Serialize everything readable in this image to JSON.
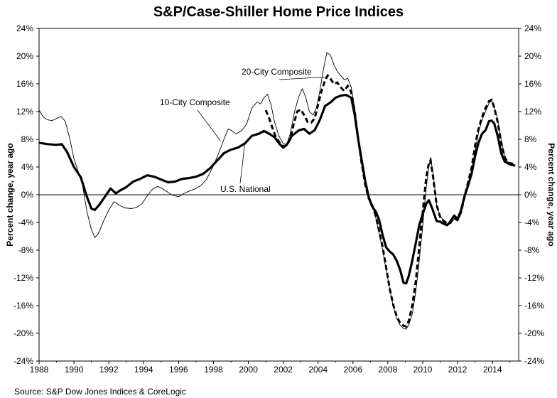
{
  "chart_data": {
    "type": "line",
    "title": "S&P/Case-Shiller Home Price Indices",
    "ylabel_left": "Percent change, year ago",
    "ylabel_right": "Percent change, year ago",
    "xlabel": "",
    "xlim": [
      1988,
      2015.5
    ],
    "ylim": [
      -24,
      24
    ],
    "x_ticks": [
      1988,
      1990,
      1992,
      1994,
      1996,
      1998,
      2000,
      2002,
      2004,
      2006,
      2008,
      2010,
      2012,
      2014
    ],
    "y_ticks": [
      -24,
      -20,
      -16,
      -12,
      -8,
      -4,
      0,
      4,
      8,
      12,
      16,
      20,
      24
    ],
    "y_tick_suffix": "%",
    "grid": false,
    "legend": "none (series labeled with callout annotations)",
    "series": [
      {
        "name": "10-City Composite",
        "style": "thin-solid",
        "points": [
          [
            1988.0,
            12.2
          ],
          [
            1988.25,
            11.2
          ],
          [
            1988.5,
            10.8
          ],
          [
            1988.75,
            10.7
          ],
          [
            1989.0,
            11.0
          ],
          [
            1989.25,
            11.3
          ],
          [
            1989.5,
            10.6
          ],
          [
            1989.75,
            8.2
          ],
          [
            1990.0,
            5.2
          ],
          [
            1990.25,
            3.3
          ],
          [
            1990.5,
            1.2
          ],
          [
            1990.75,
            -2.5
          ],
          [
            1991.0,
            -5.0
          ],
          [
            1991.2,
            -6.2
          ],
          [
            1991.4,
            -5.6
          ],
          [
            1991.7,
            -3.8
          ],
          [
            1992.0,
            -2.2
          ],
          [
            1992.3,
            -1.0
          ],
          [
            1992.6,
            -1.5
          ],
          [
            1992.9,
            -1.9
          ],
          [
            1993.3,
            -2.0
          ],
          [
            1993.6,
            -1.8
          ],
          [
            1993.9,
            -1.3
          ],
          [
            1994.2,
            -0.2
          ],
          [
            1994.5,
            0.8
          ],
          [
            1994.8,
            1.2
          ],
          [
            1995.0,
            1.0
          ],
          [
            1995.3,
            0.5
          ],
          [
            1995.6,
            0.0
          ],
          [
            1996.0,
            -0.3
          ],
          [
            1996.3,
            0.2
          ],
          [
            1996.6,
            0.5
          ],
          [
            1997.0,
            0.9
          ],
          [
            1997.3,
            1.4
          ],
          [
            1997.6,
            2.2
          ],
          [
            1998.0,
            4.2
          ],
          [
            1998.3,
            6.0
          ],
          [
            1998.6,
            8.0
          ],
          [
            1998.85,
            9.5
          ],
          [
            1999.0,
            9.3
          ],
          [
            1999.3,
            8.8
          ],
          [
            1999.6,
            9.2
          ],
          [
            1999.9,
            10.2
          ],
          [
            2000.2,
            12.5
          ],
          [
            2000.5,
            13.4
          ],
          [
            2000.7,
            13.1
          ],
          [
            2000.9,
            14.0
          ],
          [
            2001.1,
            14.5
          ],
          [
            2001.3,
            13.0
          ],
          [
            2001.5,
            10.5
          ],
          [
            2001.75,
            8.5
          ],
          [
            2002.0,
            7.4
          ],
          [
            2002.2,
            7.2
          ],
          [
            2002.4,
            8.8
          ],
          [
            2002.65,
            12.0
          ],
          [
            2002.9,
            14.2
          ],
          [
            2003.1,
            15.3
          ],
          [
            2003.3,
            14.0
          ],
          [
            2003.5,
            12.0
          ],
          [
            2003.7,
            11.5
          ],
          [
            2003.9,
            12.5
          ],
          [
            2004.1,
            15.0
          ],
          [
            2004.3,
            18.0
          ],
          [
            2004.5,
            20.5
          ],
          [
            2004.7,
            20.2
          ],
          [
            2004.9,
            18.8
          ],
          [
            2005.1,
            17.8
          ],
          [
            2005.3,
            17.2
          ],
          [
            2005.5,
            16.6
          ],
          [
            2005.7,
            16.8
          ],
          [
            2005.9,
            15.5
          ],
          [
            2006.1,
            12.5
          ],
          [
            2006.3,
            8.5
          ],
          [
            2006.5,
            4.8
          ],
          [
            2006.7,
            1.8
          ],
          [
            2006.9,
            -0.2
          ],
          [
            2007.1,
            -1.5
          ],
          [
            2007.3,
            -3.2
          ],
          [
            2007.5,
            -5.5
          ],
          [
            2007.7,
            -8.0
          ],
          [
            2007.9,
            -10.8
          ],
          [
            2008.1,
            -13.5
          ],
          [
            2008.3,
            -16.0
          ],
          [
            2008.5,
            -17.8
          ],
          [
            2008.7,
            -18.8
          ],
          [
            2008.9,
            -19.3
          ],
          [
            2009.05,
            -19.4
          ],
          [
            2009.2,
            -18.8
          ],
          [
            2009.4,
            -17.2
          ],
          [
            2009.6,
            -14.0
          ],
          [
            2009.8,
            -9.5
          ],
          [
            2010.0,
            -4.5
          ],
          [
            2010.2,
            1.0
          ],
          [
            2010.35,
            4.0
          ],
          [
            2010.45,
            5.3
          ],
          [
            2010.6,
            3.0
          ],
          [
            2010.8,
            -1.5
          ],
          [
            2011.0,
            -3.0
          ],
          [
            2011.2,
            -3.8
          ],
          [
            2011.4,
            -4.3
          ],
          [
            2011.6,
            -4.2
          ],
          [
            2011.8,
            -3.5
          ],
          [
            2012.0,
            -3.8
          ],
          [
            2012.2,
            -2.8
          ],
          [
            2012.4,
            -0.5
          ],
          [
            2012.6,
            1.5
          ],
          [
            2012.8,
            3.3
          ],
          [
            2013.0,
            6.3
          ],
          [
            2013.2,
            9.0
          ],
          [
            2013.4,
            10.8
          ],
          [
            2013.6,
            12.0
          ],
          [
            2013.8,
            13.2
          ],
          [
            2013.95,
            13.6
          ],
          [
            2014.1,
            12.8
          ],
          [
            2014.3,
            10.8
          ],
          [
            2014.5,
            7.8
          ],
          [
            2014.7,
            5.5
          ],
          [
            2014.9,
            4.6
          ],
          [
            2015.1,
            4.4
          ],
          [
            2015.3,
            4.3
          ]
        ]
      },
      {
        "name": "20-City Composite",
        "style": "thick-dashed",
        "points": [
          [
            2001.0,
            12.2
          ],
          [
            2001.2,
            11.0
          ],
          [
            2001.4,
            9.5
          ],
          [
            2001.6,
            8.2
          ],
          [
            2001.8,
            7.5
          ],
          [
            2002.0,
            7.0
          ],
          [
            2002.2,
            7.1
          ],
          [
            2002.4,
            8.0
          ],
          [
            2002.6,
            10.2
          ],
          [
            2002.8,
            12.0
          ],
          [
            2003.0,
            12.3
          ],
          [
            2003.2,
            11.5
          ],
          [
            2003.4,
            10.5
          ],
          [
            2003.6,
            10.4
          ],
          [
            2003.8,
            11.0
          ],
          [
            2004.0,
            13.0
          ],
          [
            2004.2,
            15.0
          ],
          [
            2004.4,
            16.5
          ],
          [
            2004.55,
            17.2
          ],
          [
            2004.7,
            16.8
          ],
          [
            2004.9,
            16.0
          ],
          [
            2005.1,
            16.2
          ],
          [
            2005.3,
            15.5
          ],
          [
            2005.5,
            15.0
          ],
          [
            2005.7,
            15.7
          ],
          [
            2005.9,
            14.8
          ],
          [
            2006.1,
            12.0
          ],
          [
            2006.3,
            8.0
          ],
          [
            2006.5,
            4.5
          ],
          [
            2006.7,
            1.5
          ],
          [
            2006.9,
            -0.5
          ],
          [
            2007.1,
            -1.5
          ],
          [
            2007.3,
            -3.0
          ],
          [
            2007.5,
            -5.2
          ],
          [
            2007.7,
            -7.5
          ],
          [
            2007.9,
            -10.5
          ],
          [
            2008.1,
            -13.5
          ],
          [
            2008.3,
            -15.8
          ],
          [
            2008.5,
            -17.5
          ],
          [
            2008.7,
            -18.5
          ],
          [
            2008.9,
            -18.9
          ],
          [
            2009.05,
            -19.0
          ],
          [
            2009.2,
            -18.2
          ],
          [
            2009.4,
            -16.0
          ],
          [
            2009.6,
            -12.5
          ],
          [
            2009.8,
            -7.5
          ],
          [
            2010.0,
            -2.5
          ],
          [
            2010.2,
            2.5
          ],
          [
            2010.35,
            4.5
          ],
          [
            2010.45,
            5.0
          ],
          [
            2010.6,
            2.5
          ],
          [
            2010.8,
            -1.5
          ],
          [
            2011.0,
            -3.2
          ],
          [
            2011.2,
            -3.8
          ],
          [
            2011.4,
            -4.1
          ],
          [
            2011.6,
            -4.0
          ],
          [
            2011.8,
            -3.3
          ],
          [
            2012.0,
            -3.6
          ],
          [
            2012.2,
            -2.5
          ],
          [
            2012.4,
            -0.3
          ],
          [
            2012.6,
            1.8
          ],
          [
            2012.8,
            3.8
          ],
          [
            2013.0,
            7.0
          ],
          [
            2013.2,
            9.5
          ],
          [
            2013.4,
            11.2
          ],
          [
            2013.6,
            12.5
          ],
          [
            2013.8,
            13.5
          ],
          [
            2013.95,
            13.7
          ],
          [
            2014.1,
            12.6
          ],
          [
            2014.3,
            10.5
          ],
          [
            2014.5,
            7.5
          ],
          [
            2014.7,
            5.4
          ],
          [
            2014.9,
            4.6
          ],
          [
            2015.1,
            4.5
          ],
          [
            2015.3,
            4.4
          ]
        ]
      },
      {
        "name": "U.S. National",
        "style": "thick-solid",
        "points": [
          [
            1988.0,
            7.5
          ],
          [
            1988.5,
            7.3
          ],
          [
            1989.0,
            7.2
          ],
          [
            1989.3,
            7.3
          ],
          [
            1989.6,
            6.2
          ],
          [
            1990.0,
            4.0
          ],
          [
            1990.4,
            2.5
          ],
          [
            1990.7,
            0.0
          ],
          [
            1991.0,
            -2.0
          ],
          [
            1991.2,
            -2.2
          ],
          [
            1991.5,
            -1.3
          ],
          [
            1991.8,
            -0.2
          ],
          [
            1992.1,
            0.9
          ],
          [
            1992.4,
            0.2
          ],
          [
            1992.7,
            0.7
          ],
          [
            1993.0,
            1.1
          ],
          [
            1993.4,
            1.9
          ],
          [
            1993.8,
            2.3
          ],
          [
            1994.2,
            2.8
          ],
          [
            1994.6,
            2.6
          ],
          [
            1995.0,
            2.2
          ],
          [
            1995.4,
            1.8
          ],
          [
            1995.8,
            1.9
          ],
          [
            1996.2,
            2.3
          ],
          [
            1996.6,
            2.4
          ],
          [
            1997.0,
            2.6
          ],
          [
            1997.4,
            3.0
          ],
          [
            1997.8,
            3.8
          ],
          [
            1998.2,
            4.9
          ],
          [
            1998.6,
            6.0
          ],
          [
            1999.0,
            6.5
          ],
          [
            1999.4,
            6.8
          ],
          [
            1999.8,
            7.4
          ],
          [
            2000.2,
            8.5
          ],
          [
            2000.6,
            8.8
          ],
          [
            2000.9,
            9.2
          ],
          [
            2001.2,
            8.8
          ],
          [
            2001.5,
            8.3
          ],
          [
            2001.8,
            7.3
          ],
          [
            2002.0,
            6.8
          ],
          [
            2002.2,
            7.2
          ],
          [
            2002.5,
            8.5
          ],
          [
            2002.9,
            9.3
          ],
          [
            2003.2,
            9.5
          ],
          [
            2003.5,
            8.8
          ],
          [
            2003.8,
            9.3
          ],
          [
            2004.1,
            10.8
          ],
          [
            2004.4,
            12.8
          ],
          [
            2004.7,
            13.3
          ],
          [
            2005.0,
            14.0
          ],
          [
            2005.3,
            14.3
          ],
          [
            2005.6,
            14.4
          ],
          [
            2005.9,
            14.0
          ],
          [
            2006.1,
            11.5
          ],
          [
            2006.3,
            8.0
          ],
          [
            2006.5,
            5.0
          ],
          [
            2006.7,
            2.0
          ],
          [
            2006.9,
            -0.3
          ],
          [
            2007.1,
            -1.7
          ],
          [
            2007.3,
            -2.4
          ],
          [
            2007.5,
            -3.6
          ],
          [
            2007.7,
            -5.8
          ],
          [
            2007.9,
            -7.6
          ],
          [
            2008.1,
            -8.2
          ],
          [
            2008.3,
            -8.6
          ],
          [
            2008.5,
            -9.5
          ],
          [
            2008.7,
            -10.8
          ],
          [
            2008.9,
            -12.7
          ],
          [
            2009.05,
            -12.8
          ],
          [
            2009.2,
            -11.7
          ],
          [
            2009.4,
            -9.5
          ],
          [
            2009.6,
            -7.0
          ],
          [
            2009.8,
            -4.4
          ],
          [
            2010.0,
            -2.8
          ],
          [
            2010.2,
            -1.3
          ],
          [
            2010.35,
            -0.8
          ],
          [
            2010.55,
            -2.0
          ],
          [
            2010.8,
            -3.8
          ],
          [
            2011.0,
            -3.9
          ],
          [
            2011.2,
            -4.2
          ],
          [
            2011.4,
            -4.4
          ],
          [
            2011.6,
            -3.8
          ],
          [
            2011.8,
            -3.0
          ],
          [
            2012.0,
            -3.5
          ],
          [
            2012.2,
            -2.2
          ],
          [
            2012.4,
            -0.2
          ],
          [
            2012.6,
            1.3
          ],
          [
            2012.8,
            3.0
          ],
          [
            2013.0,
            5.5
          ],
          [
            2013.2,
            7.5
          ],
          [
            2013.4,
            8.8
          ],
          [
            2013.6,
            9.3
          ],
          [
            2013.8,
            10.6
          ],
          [
            2013.95,
            10.7
          ],
          [
            2014.1,
            10.3
          ],
          [
            2014.3,
            8.5
          ],
          [
            2014.5,
            6.0
          ],
          [
            2014.7,
            4.8
          ],
          [
            2014.9,
            4.5
          ],
          [
            2015.1,
            4.3
          ],
          [
            2015.3,
            4.2
          ]
        ]
      }
    ],
    "annotations": [
      {
        "text": "20-City Composite",
        "anchor": [
          2004.55,
          17.0
        ]
      },
      {
        "text": "10-City Composite",
        "anchor": [
          1998.4,
          7.8
        ]
      },
      {
        "text": "U.S. National",
        "anchor": [
          1999.8,
          7.4
        ]
      }
    ],
    "source": "Source: S&P Dow Jones Indices & CoreLogic"
  }
}
